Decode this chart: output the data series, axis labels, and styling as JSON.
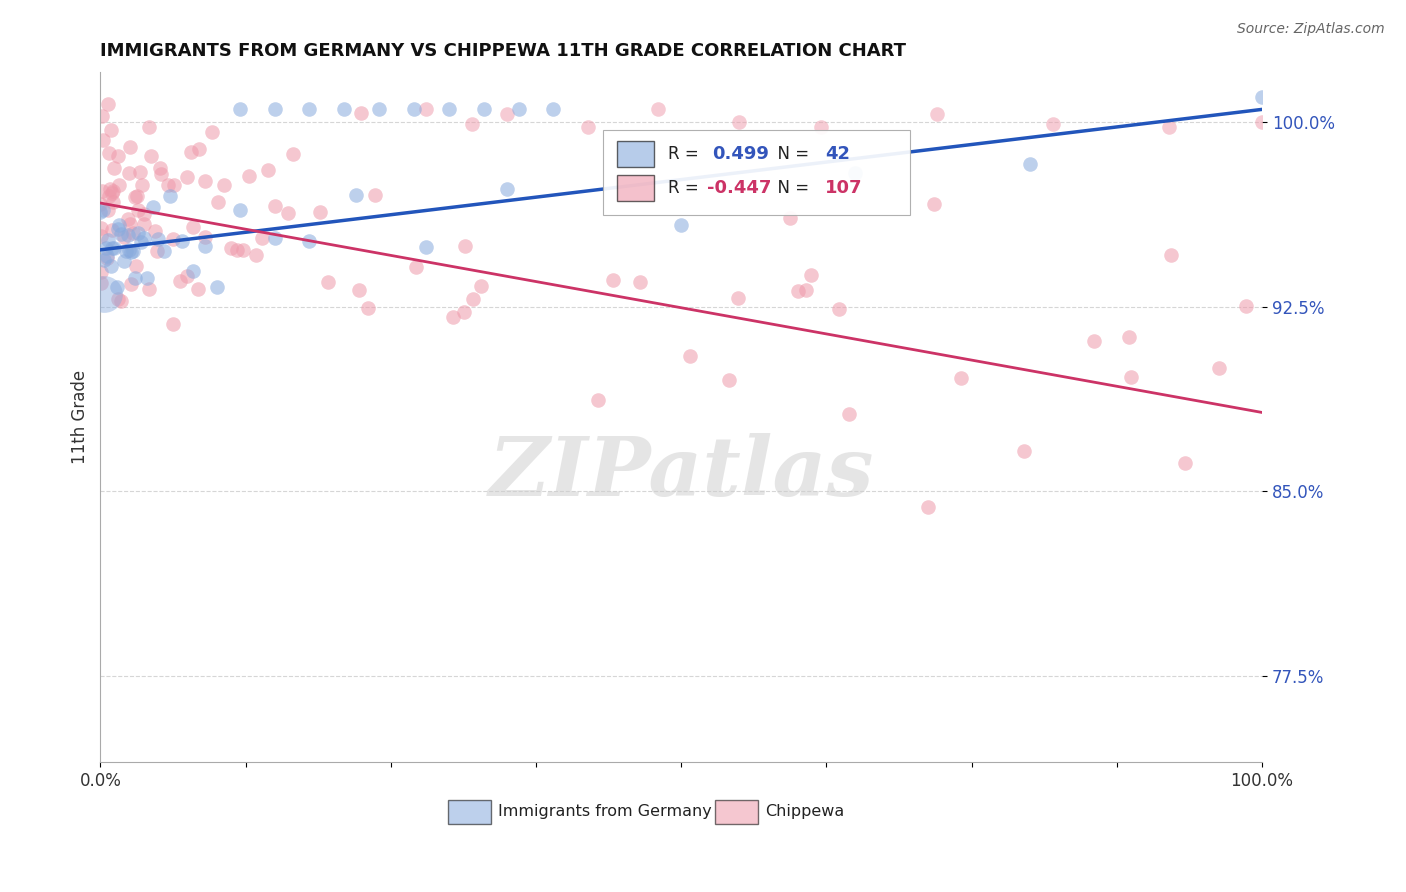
{
  "title": "IMMIGRANTS FROM GERMANY VS CHIPPEWA 11TH GRADE CORRELATION CHART",
  "source_text": "Source: ZipAtlas.com",
  "ylabel": "11th Grade",
  "xlim": [
    0.0,
    1.0
  ],
  "ylim": [
    0.74,
    1.02
  ],
  "yticks": [
    0.775,
    0.85,
    0.925,
    1.0
  ],
  "ytick_labels": [
    "77.5%",
    "85.0%",
    "92.5%",
    "100.0%"
  ],
  "xticks": [
    0.0,
    0.125,
    0.25,
    0.375,
    0.5,
    0.625,
    0.75,
    0.875,
    1.0
  ],
  "xtick_labels_show": [
    "0.0%",
    "",
    "",
    "",
    "",
    "",
    "",
    "",
    "100.0%"
  ],
  "legend_label1": "Immigrants from Germany",
  "legend_label2": "Chippewa",
  "blue_color": "#88aadd",
  "pink_color": "#ee99aa",
  "trendline_blue": "#2255bb",
  "trendline_pink": "#cc3366",
  "watermark": "ZIPatlas",
  "blue_trend_y_start": 0.948,
  "blue_trend_y_end": 1.005,
  "pink_trend_y_start": 0.967,
  "pink_trend_y_end": 0.882,
  "r_blue": "0.499",
  "n_blue": "42",
  "r_pink": "-0.447",
  "n_pink": "107"
}
